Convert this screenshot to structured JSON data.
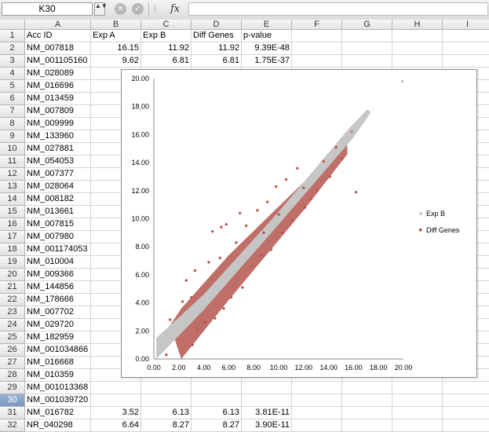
{
  "formula_bar": {
    "name_box": "K30",
    "dropdown_icon": "▲▼",
    "cancel_icon": "✕",
    "enter_icon": "✓",
    "paren_icon": "(",
    "fx_label": "fx",
    "formula": ""
  },
  "active_row": "30",
  "column_headers": [
    "A",
    "B",
    "C",
    "D",
    "E",
    "F",
    "G",
    "H",
    "I"
  ],
  "rows": [
    {
      "n": "1",
      "a": "Acc ID",
      "b": "Exp A",
      "c": "Exp B",
      "d": "Diff Genes",
      "e": "p-value"
    },
    {
      "n": "2",
      "a": "NM_007818",
      "b": "16.15",
      "c": "11.92",
      "d": "11.92",
      "e": "9.39E-48"
    },
    {
      "n": "3",
      "a": "NM_001105160",
      "b": "9.62",
      "c": "6.81",
      "d": "6.81",
      "e": "1.75E-37"
    },
    {
      "n": "4",
      "a": "NM_028089",
      "b": "",
      "c": "",
      "d": "",
      "e": ""
    },
    {
      "n": "5",
      "a": "NM_016696",
      "b": "",
      "c": "",
      "d": "",
      "e": ""
    },
    {
      "n": "6",
      "a": "NM_013459",
      "b": "",
      "c": "",
      "d": "",
      "e": ""
    },
    {
      "n": "7",
      "a": "NM_007809",
      "b": "",
      "c": "",
      "d": "",
      "e": ""
    },
    {
      "n": "8",
      "a": "NM_009999",
      "b": "",
      "c": "",
      "d": "",
      "e": ""
    },
    {
      "n": "9",
      "a": "NM_133960",
      "b": "",
      "c": "",
      "d": "",
      "e": ""
    },
    {
      "n": "10",
      "a": "NM_027881",
      "b": "",
      "c": "",
      "d": "",
      "e": ""
    },
    {
      "n": "11",
      "a": "NM_054053",
      "b": "",
      "c": "",
      "d": "",
      "e": ""
    },
    {
      "n": "12",
      "a": "NM_007377",
      "b": "",
      "c": "",
      "d": "",
      "e": ""
    },
    {
      "n": "13",
      "a": "NM_028064",
      "b": "",
      "c": "",
      "d": "",
      "e": ""
    },
    {
      "n": "14",
      "a": "NM_008182",
      "b": "",
      "c": "",
      "d": "",
      "e": ""
    },
    {
      "n": "15",
      "a": "NM_013661",
      "b": "",
      "c": "",
      "d": "",
      "e": ""
    },
    {
      "n": "16",
      "a": "NM_007815",
      "b": "",
      "c": "",
      "d": "",
      "e": ""
    },
    {
      "n": "17",
      "a": "NM_007980",
      "b": "",
      "c": "",
      "d": "",
      "e": ""
    },
    {
      "n": "18",
      "a": "NM_001174053",
      "b": "",
      "c": "",
      "d": "",
      "e": ""
    },
    {
      "n": "19",
      "a": "NM_010004",
      "b": "",
      "c": "",
      "d": "",
      "e": ""
    },
    {
      "n": "20",
      "a": "NM_009366",
      "b": "",
      "c": "",
      "d": "",
      "e": ""
    },
    {
      "n": "21",
      "a": "NM_144856",
      "b": "",
      "c": "",
      "d": "",
      "e": ""
    },
    {
      "n": "22",
      "a": "NM_178666",
      "b": "",
      "c": "",
      "d": "",
      "e": ""
    },
    {
      "n": "23",
      "a": "NM_007702",
      "b": "",
      "c": "",
      "d": "",
      "e": ""
    },
    {
      "n": "24",
      "a": "NM_029720",
      "b": "",
      "c": "",
      "d": "",
      "e": ""
    },
    {
      "n": "25",
      "a": "NM_182959",
      "b": "",
      "c": "",
      "d": "",
      "e": ""
    },
    {
      "n": "26",
      "a": "NM_001034866",
      "b": "",
      "c": "",
      "d": "",
      "e": ""
    },
    {
      "n": "27",
      "a": "NM_016668",
      "b": "",
      "c": "",
      "d": "",
      "e": ""
    },
    {
      "n": "28",
      "a": "NM_010359",
      "b": "",
      "c": "",
      "d": "",
      "e": ""
    },
    {
      "n": "29",
      "a": "NM_001013368",
      "b": "",
      "c": "",
      "d": "",
      "e": ""
    },
    {
      "n": "30",
      "a": "NM_001039720",
      "b": "",
      "c": "",
      "d": "",
      "e": ""
    },
    {
      "n": "31",
      "a": "NM_016782",
      "b": "3.52",
      "c": "6.13",
      "d": "6.13",
      "e": "3.81E-11"
    },
    {
      "n": "32",
      "a": "NR_040298",
      "b": "6.64",
      "c": "8.27",
      "d": "8.27",
      "e": "3.90E-11"
    }
  ],
  "chart_data": {
    "type": "scatter",
    "xlim": [
      0,
      20
    ],
    "ylim": [
      0,
      20
    ],
    "x_ticks": [
      "0.00",
      "2.00",
      "4.00",
      "6.00",
      "8.00",
      "10.00",
      "12.00",
      "14.00",
      "16.00",
      "18.00",
      "20.00"
    ],
    "y_ticks": [
      "0.00",
      "2.00",
      "4.00",
      "6.00",
      "8.00",
      "10.00",
      "12.00",
      "14.00",
      "16.00",
      "18.00",
      "20.00"
    ],
    "grid": false,
    "legend_position": "right",
    "series": [
      {
        "name": "Exp B",
        "color": "#c6c6c6",
        "points": [
          [
            0.3,
            0.4
          ],
          [
            0.5,
            0.7
          ],
          [
            0.9,
            1.0
          ],
          [
            1.2,
            1.1
          ],
          [
            1.6,
            1.7
          ],
          [
            2.0,
            2.1
          ],
          [
            2.4,
            2.3
          ],
          [
            2.8,
            2.9
          ],
          [
            3.2,
            3.1
          ],
          [
            3.6,
            3.7
          ],
          [
            4.0,
            3.9
          ],
          [
            4.4,
            4.5
          ],
          [
            4.8,
            4.7
          ],
          [
            5.2,
            5.3
          ],
          [
            5.6,
            5.5
          ],
          [
            6.0,
            6.1
          ],
          [
            6.4,
            6.3
          ],
          [
            6.8,
            6.9
          ],
          [
            7.2,
            7.1
          ],
          [
            7.6,
            7.7
          ],
          [
            8.0,
            7.9
          ],
          [
            8.4,
            8.5
          ],
          [
            8.8,
            8.7
          ],
          [
            9.2,
            9.3
          ],
          [
            9.6,
            9.5
          ],
          [
            10.0,
            10.1
          ],
          [
            10.4,
            10.3
          ],
          [
            10.8,
            10.9
          ],
          [
            11.2,
            11.1
          ],
          [
            11.6,
            11.7
          ],
          [
            12.0,
            11.9
          ],
          [
            12.4,
            12.5
          ],
          [
            12.8,
            12.7
          ],
          [
            13.2,
            13.3
          ],
          [
            13.6,
            13.5
          ],
          [
            14.0,
            14.1
          ],
          [
            14.5,
            14.6
          ],
          [
            15.0,
            15.1
          ],
          [
            15.5,
            15.7
          ],
          [
            16.0,
            16.2
          ],
          [
            16.6,
            16.9
          ],
          [
            17.0,
            17.4
          ],
          [
            19.9,
            19.8
          ]
        ]
      },
      {
        "name": "Diff Genes",
        "color": "#b5554e",
        "points": [
          [
            1.3,
            2.8
          ],
          [
            1.0,
            0.3
          ],
          [
            2.3,
            4.1
          ],
          [
            2.6,
            5.6
          ],
          [
            3.1,
            1.0
          ],
          [
            3.3,
            6.3
          ],
          [
            3.5,
            2.1
          ],
          [
            4.1,
            2.6
          ],
          [
            4.4,
            6.9
          ],
          [
            4.7,
            9.1
          ],
          [
            4.9,
            2.9
          ],
          [
            5.3,
            7.2
          ],
          [
            5.6,
            3.6
          ],
          [
            5.8,
            9.6
          ],
          [
            6.2,
            4.4
          ],
          [
            6.6,
            8.3
          ],
          [
            6.9,
            10.4
          ],
          [
            7.1,
            5.1
          ],
          [
            7.4,
            9.5
          ],
          [
            7.8,
            6.6
          ],
          [
            8.3,
            10.6
          ],
          [
            8.6,
            7.4
          ],
          [
            9.1,
            11.2
          ],
          [
            9.4,
            7.8
          ],
          [
            9.8,
            12.3
          ],
          [
            10.3,
            9.0
          ],
          [
            10.6,
            12.8
          ],
          [
            11.1,
            9.9
          ],
          [
            11.5,
            13.6
          ],
          [
            12.1,
            10.8
          ],
          [
            12.6,
            11.4
          ],
          [
            13.1,
            12.0
          ],
          [
            13.6,
            14.1
          ],
          [
            14.1,
            13.0
          ],
          [
            14.6,
            15.1
          ],
          [
            15.1,
            14.3
          ],
          [
            15.9,
            16.2
          ],
          [
            16.2,
            11.9
          ],
          [
            5.4,
            9.4
          ],
          [
            3.0,
            4.4
          ],
          [
            8.8,
            9.0
          ],
          [
            10.0,
            10.3
          ],
          [
            12.0,
            12.2
          ]
        ]
      }
    ]
  }
}
